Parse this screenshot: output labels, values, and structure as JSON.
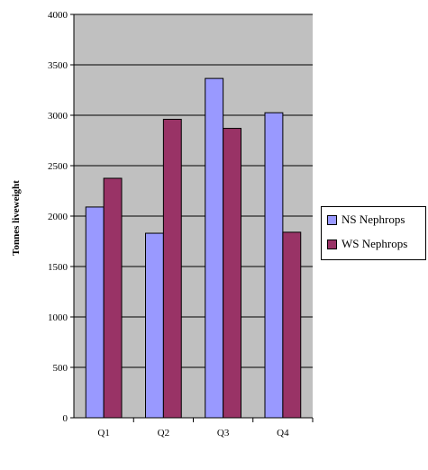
{
  "chart_data": {
    "type": "bar",
    "title": "",
    "xlabel": "",
    "ylabel": "Tonnes liveweight",
    "categories": [
      "Q1",
      "Q2",
      "Q3",
      "Q4"
    ],
    "series": [
      {
        "name": "NS Nephrops",
        "values": [
          2090,
          1830,
          3365,
          3025
        ],
        "color": "#9999ff"
      },
      {
        "name": "WS Nephrops",
        "values": [
          2375,
          2960,
          2870,
          1840
        ],
        "color": "#993366"
      }
    ],
    "ylim": [
      0,
      4000
    ],
    "yticks": [
      "0",
      "500",
      "1000",
      "1500",
      "2000",
      "2500",
      "3000",
      "3500",
      "4000"
    ],
    "grid": true,
    "plot_background": "#c0c0c0",
    "legend_position": "right"
  }
}
